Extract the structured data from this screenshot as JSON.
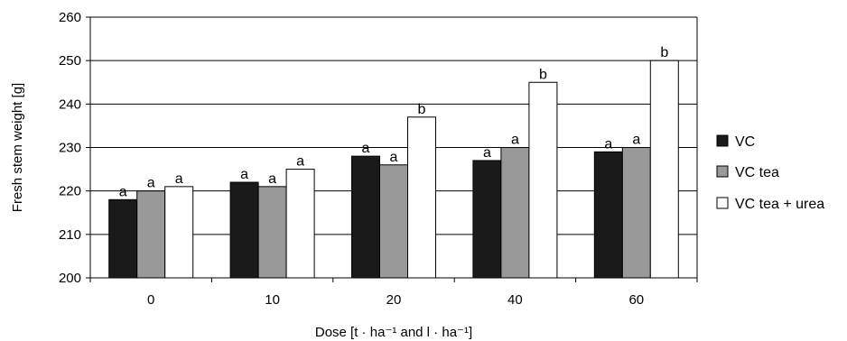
{
  "chart_data": {
    "type": "bar",
    "title": "",
    "xlabel": "Dose [t · ha⁻¹ and l · ha⁻¹]",
    "ylabel": "Fresh stem weight [g]",
    "categories": [
      "0",
      "10",
      "20",
      "40",
      "60"
    ],
    "ylim": [
      200,
      260
    ],
    "yticks": [
      200,
      210,
      220,
      230,
      240,
      250,
      260
    ],
    "grid": true,
    "legend_position": "right",
    "series": [
      {
        "name": "VC",
        "color": "#1a1a1a",
        "values": [
          218,
          222,
          228,
          227,
          229
        ],
        "labels": [
          "a",
          "a",
          "a",
          "a",
          "a"
        ]
      },
      {
        "name": "VC tea",
        "color": "#999999",
        "values": [
          220,
          221,
          226,
          230,
          230
        ],
        "labels": [
          "a",
          "a",
          "a",
          "a",
          "a"
        ]
      },
      {
        "name": "VC tea + urea",
        "color": "#ffffff",
        "values": [
          221,
          225,
          237,
          245,
          250
        ],
        "labels": [
          "a",
          "a",
          "b",
          "b",
          "b"
        ]
      }
    ]
  }
}
